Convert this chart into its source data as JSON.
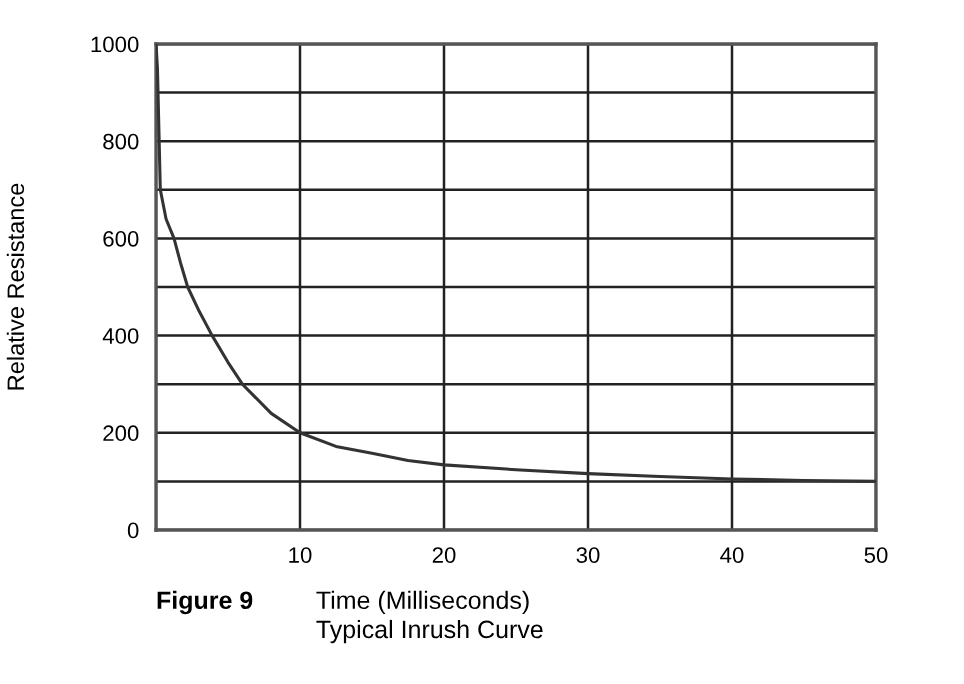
{
  "chart_data": {
    "type": "line",
    "xlabel": "Time (Milliseconds)",
    "ylabel": "Relative Resistance",
    "annotations": [
      "Figure 9",
      "Typical Inrush Curve"
    ],
    "series": [
      {
        "color": "#333333",
        "x": [
          0,
          0.1,
          0.3,
          0.7,
          1.25,
          1.7,
          2.2,
          3,
          3.9,
          5,
          6,
          8,
          10,
          12.5,
          15,
          17.5,
          20,
          25,
          30,
          35,
          40,
          45,
          50
        ],
        "values": [
          1000,
          950,
          700,
          640,
          600,
          550,
          500,
          450,
          400,
          345,
          300,
          240,
          200,
          172,
          158,
          143,
          134,
          124,
          116,
          110,
          105,
          102,
          100
        ]
      }
    ],
    "xlim": [
      0,
      50
    ],
    "xticks": [
      {
        "value": 0,
        "label": null
      },
      10,
      20,
      30,
      40,
      50
    ],
    "ylim": [
      0,
      1000
    ],
    "yticks": [
      0,
      {
        "value": 100,
        "label": null
      },
      200,
      {
        "value": 300,
        "label": null
      },
      400,
      {
        "value": 500,
        "label": null
      },
      600,
      {
        "value": 700,
        "label": null
      },
      800,
      {
        "value": 900,
        "label": null
      },
      1000
    ],
    "grid": true,
    "marker": "none",
    "line_style": "solid"
  }
}
